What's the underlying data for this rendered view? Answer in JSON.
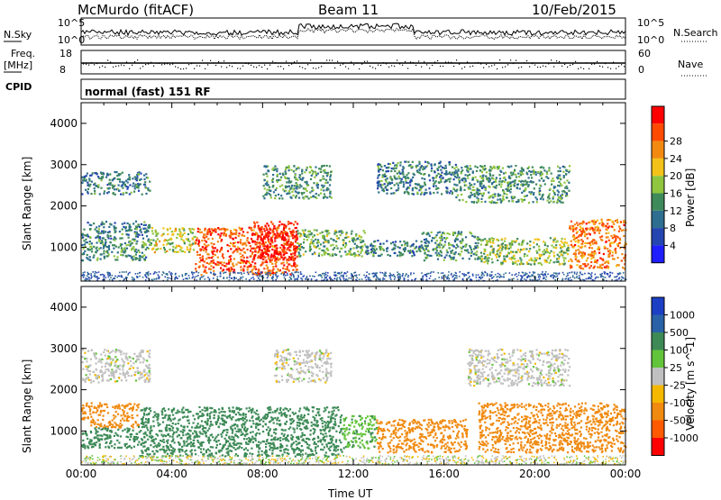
{
  "header": {
    "station": "McMurdo (fitACF)",
    "beam": "Beam 11",
    "date": "10/Feb/2015"
  },
  "top_panels": {
    "nsky_label": "N.Sky",
    "nsearch_label": "N.Search",
    "noise_ticks_left": [
      "10^5",
      "10^0"
    ],
    "noise_ticks_right": [
      "10^5",
      "10^0"
    ],
    "freq_label": "Freq.",
    "freq_unit": "[MHz]",
    "freq_ticks": [
      "18",
      "8"
    ],
    "nave_label": "Nave",
    "nave_ticks": [
      "60",
      "0"
    ],
    "cpid_label": "CPID",
    "cpid_value": "normal (fast) 151 RF"
  },
  "colors": {
    "power": [
      "#1e1eff",
      "#2545b0",
      "#2e6e90",
      "#3f8a5a",
      "#8fc53f",
      "#f2c21a",
      "#f28a12",
      "#ff4a00",
      "#ff0000"
    ],
    "velocity": [
      "#1c3fc4",
      "#2a62a8",
      "#3d8a57",
      "#62c43a",
      "#c0c0c0",
      "#f5b800",
      "#f08a10",
      "#ff5a00",
      "#ff0000"
    ]
  },
  "chart_data": [
    {
      "type": "heatmap",
      "quantity": "Power",
      "ylabel": "Slant Range [km]",
      "ylim": [
        180,
        4500
      ],
      "yticks": [
        1000,
        2000,
        3000,
        4000
      ],
      "xlim_hours": [
        0,
        24
      ],
      "colorbar": {
        "label": "Power [dB]",
        "ticks": [
          "4",
          "8",
          "12",
          "16",
          "20",
          "24",
          "28"
        ],
        "range": [
          0,
          32
        ]
      },
      "regions": [
        {
          "t": [
            0.0,
            3.0
          ],
          "r": [
            1200,
            1650
          ],
          "value": 10
        },
        {
          "t": [
            0.0,
            3.0
          ],
          "r": [
            700,
            1200
          ],
          "value": 12
        },
        {
          "t": [
            0.0,
            3.0
          ],
          "r": [
            2300,
            2850
          ],
          "value": 10
        },
        {
          "t": [
            3.0,
            5.0
          ],
          "r": [
            900,
            1500
          ],
          "value": 18
        },
        {
          "t": [
            5.0,
            9.5
          ],
          "r": [
            350,
            1500
          ],
          "value": 26
        },
        {
          "t": [
            7.5,
            9.5
          ],
          "r": [
            700,
            1650
          ],
          "value": 30
        },
        {
          "t": [
            9.5,
            12.5
          ],
          "r": [
            800,
            1450
          ],
          "value": 14
        },
        {
          "t": [
            12.5,
            15.0
          ],
          "r": [
            800,
            1200
          ],
          "value": 10
        },
        {
          "t": [
            15.0,
            17.5
          ],
          "r": [
            700,
            1400
          ],
          "value": 12
        },
        {
          "t": [
            17.5,
            21.5
          ],
          "r": [
            600,
            1250
          ],
          "value": 16
        },
        {
          "t": [
            21.5,
            24.0
          ],
          "r": [
            500,
            1700
          ],
          "value": 24
        },
        {
          "t": [
            8.0,
            11.0
          ],
          "r": [
            2200,
            3000
          ],
          "value": 12
        },
        {
          "t": [
            13.0,
            16.5
          ],
          "r": [
            2300,
            3100
          ],
          "value": 10
        },
        {
          "t": [
            16.5,
            21.5
          ],
          "r": [
            2100,
            3000
          ],
          "value": 12
        }
      ]
    },
    {
      "type": "heatmap",
      "quantity": "Velocity",
      "ylabel": "Slant Range [km]",
      "xlabel": "Time UT",
      "ylim": [
        180,
        4500
      ],
      "yticks": [
        1000,
        2000,
        3000,
        4000
      ],
      "xlim_hours": [
        0,
        24
      ],
      "xticks": [
        "00:00",
        "04:00",
        "08:00",
        "12:00",
        "16:00",
        "20:00",
        "00:00"
      ],
      "colorbar": {
        "label": "Velocity [m s^-1]",
        "ticks": [
          "1000",
          "500",
          "100",
          "25",
          "-25",
          "-100",
          "-500",
          "-1000"
        ]
      },
      "regions": [
        {
          "t": [
            0.0,
            2.5
          ],
          "r": [
            1100,
            1700
          ],
          "value": -300
        },
        {
          "t": [
            0.0,
            2.5
          ],
          "r": [
            600,
            1100
          ],
          "value": 200
        },
        {
          "t": [
            2.5,
            11.5
          ],
          "r": [
            400,
            1600
          ],
          "value": 300
        },
        {
          "t": [
            11.5,
            13.0
          ],
          "r": [
            600,
            1400
          ],
          "value": 80
        },
        {
          "t": [
            13.0,
            17.0
          ],
          "r": [
            500,
            1300
          ],
          "value": -300
        },
        {
          "t": [
            17.5,
            24.0
          ],
          "r": [
            500,
            1700
          ],
          "value": -300
        },
        {
          "t": [
            0.0,
            3.0
          ],
          "r": [
            2200,
            3000
          ],
          "value": 0
        },
        {
          "t": [
            8.5,
            11.0
          ],
          "r": [
            2200,
            3000
          ],
          "value": 0
        },
        {
          "t": [
            17.0,
            21.5
          ],
          "r": [
            2100,
            3000
          ],
          "value": 0
        }
      ]
    }
  ]
}
